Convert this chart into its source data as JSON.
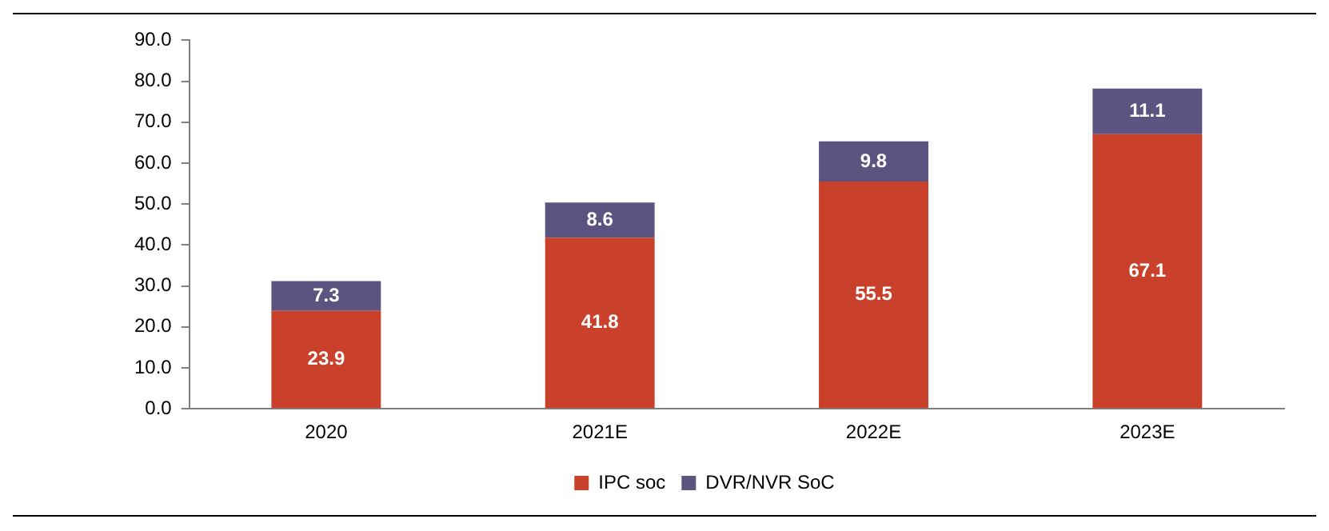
{
  "chart_data": {
    "type": "bar",
    "stacked": true,
    "categories": [
      "2020",
      "2021E",
      "2022E",
      "2023E"
    ],
    "series": [
      {
        "name": "IPC soc",
        "color": "#c9412a",
        "values": [
          23.9,
          41.8,
          55.5,
          67.1
        ]
      },
      {
        "name": "DVR/NVR SoC",
        "color": "#5d5380",
        "values": [
          7.3,
          8.6,
          9.8,
          11.1
        ]
      }
    ],
    "ylim": [
      0,
      90
    ],
    "yticks": [
      {
        "value": 0,
        "label": "0.0"
      },
      {
        "value": 10,
        "label": "10.0"
      },
      {
        "value": 20,
        "label": "20.0"
      },
      {
        "value": 30,
        "label": "30.0"
      },
      {
        "value": 40,
        "label": "40.0"
      },
      {
        "value": 50,
        "label": "50.0"
      },
      {
        "value": 60,
        "label": "60.0"
      },
      {
        "value": 70,
        "label": "70.0"
      },
      {
        "value": 80,
        "label": "80.0"
      },
      {
        "value": 90,
        "label": "90.0"
      }
    ],
    "grid": false,
    "legend": "bottom",
    "data_labels": true
  }
}
